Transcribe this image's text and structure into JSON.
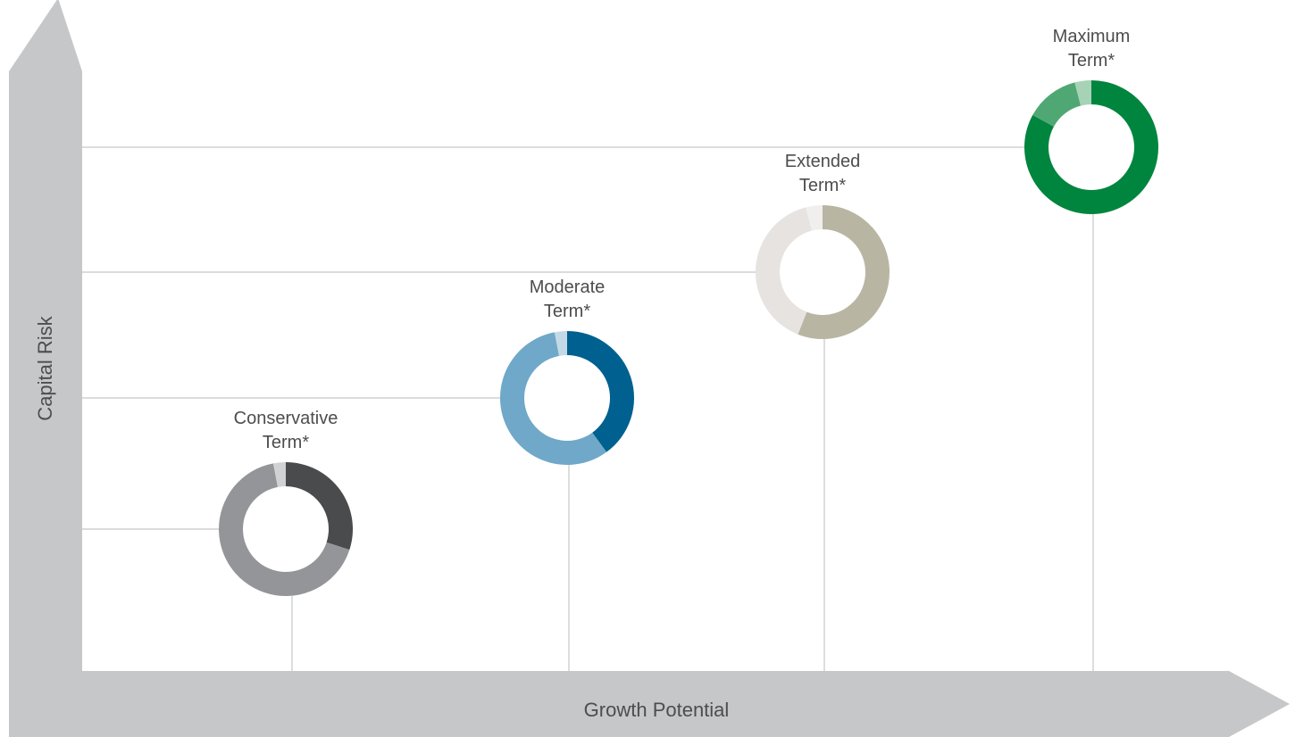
{
  "chart_data": {
    "type": "donut-scatter",
    "xlabel": "Growth Potential",
    "ylabel": "Capital Risk",
    "portfolios": [
      {
        "name_line1": "Conservative",
        "name_line2": "Term*",
        "segments": [
          {
            "value": 30,
            "color": "#4a4b4d"
          },
          {
            "value": 67,
            "color": "#939598"
          },
          {
            "value": 3,
            "color": "#d1d2d4"
          }
        ]
      },
      {
        "name_line1": "Moderate",
        "name_line2": "Term*",
        "segments": [
          {
            "value": 40,
            "color": "#00608f"
          },
          {
            "value": 57,
            "color": "#6fa8c8"
          },
          {
            "value": 3,
            "color": "#c4d9e6"
          }
        ]
      },
      {
        "name_line1": "Extended",
        "name_line2": "Term*",
        "segments": [
          {
            "value": 56,
            "color": "#b8b5a3"
          },
          {
            "value": 40,
            "color": "#e7e3e0"
          },
          {
            "value": 4,
            "color": "#f1efed"
          }
        ]
      },
      {
        "name_line1": "Maximum",
        "name_line2": "Term*",
        "segments": [
          {
            "value": 83,
            "color": "#00853e"
          },
          {
            "value": 13,
            "color": "#4fa874"
          },
          {
            "value": 4,
            "color": "#a6d3b6"
          }
        ]
      }
    ],
    "colors": {
      "axis_fill": "#c6c7c9",
      "guide_line": "#c6c7c9",
      "label_text": "#4d4d4f"
    },
    "grid": false,
    "legend": "none"
  }
}
